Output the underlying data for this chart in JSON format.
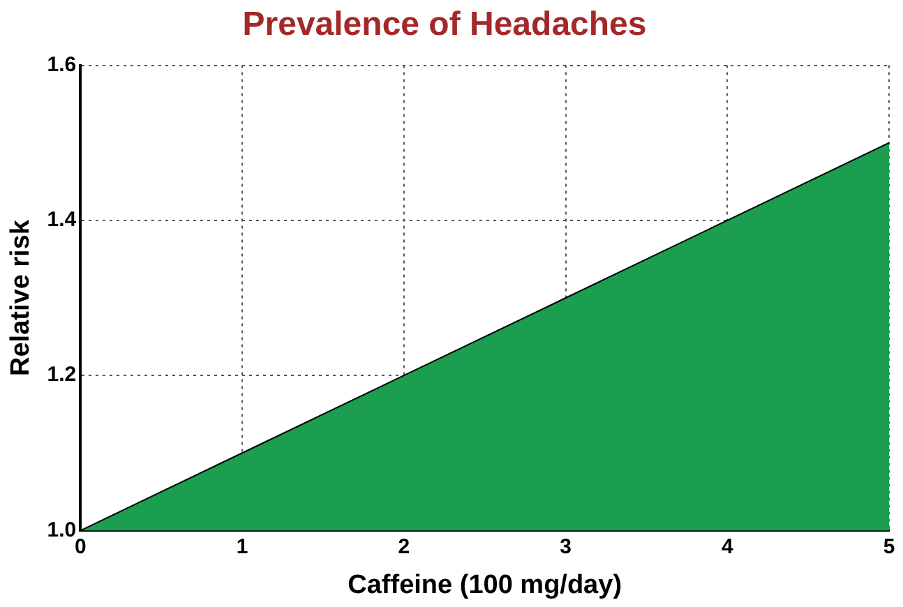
{
  "chart_data": {
    "type": "area",
    "title": "Prevalence of Headaches",
    "xlabel": "Caffeine (100 mg/day)",
    "ylabel": "Relative risk",
    "x": [
      0,
      1,
      2,
      3,
      4,
      5
    ],
    "series": [
      {
        "color": "#1b9e4f",
        "values": [
          1.0,
          1.1,
          1.2,
          1.3,
          1.4,
          1.5
        ]
      }
    ],
    "xlim": [
      0,
      5
    ],
    "xticks": [
      0,
      1,
      2,
      3,
      4,
      5
    ],
    "ylim": [
      1.0,
      1.6
    ],
    "yticks": [
      {
        "value": 1.0,
        "label": "1.0"
      },
      1.2,
      1.4,
      1.6
    ],
    "grid": true,
    "legend": false,
    "marker": "none",
    "line_style": "solid"
  }
}
